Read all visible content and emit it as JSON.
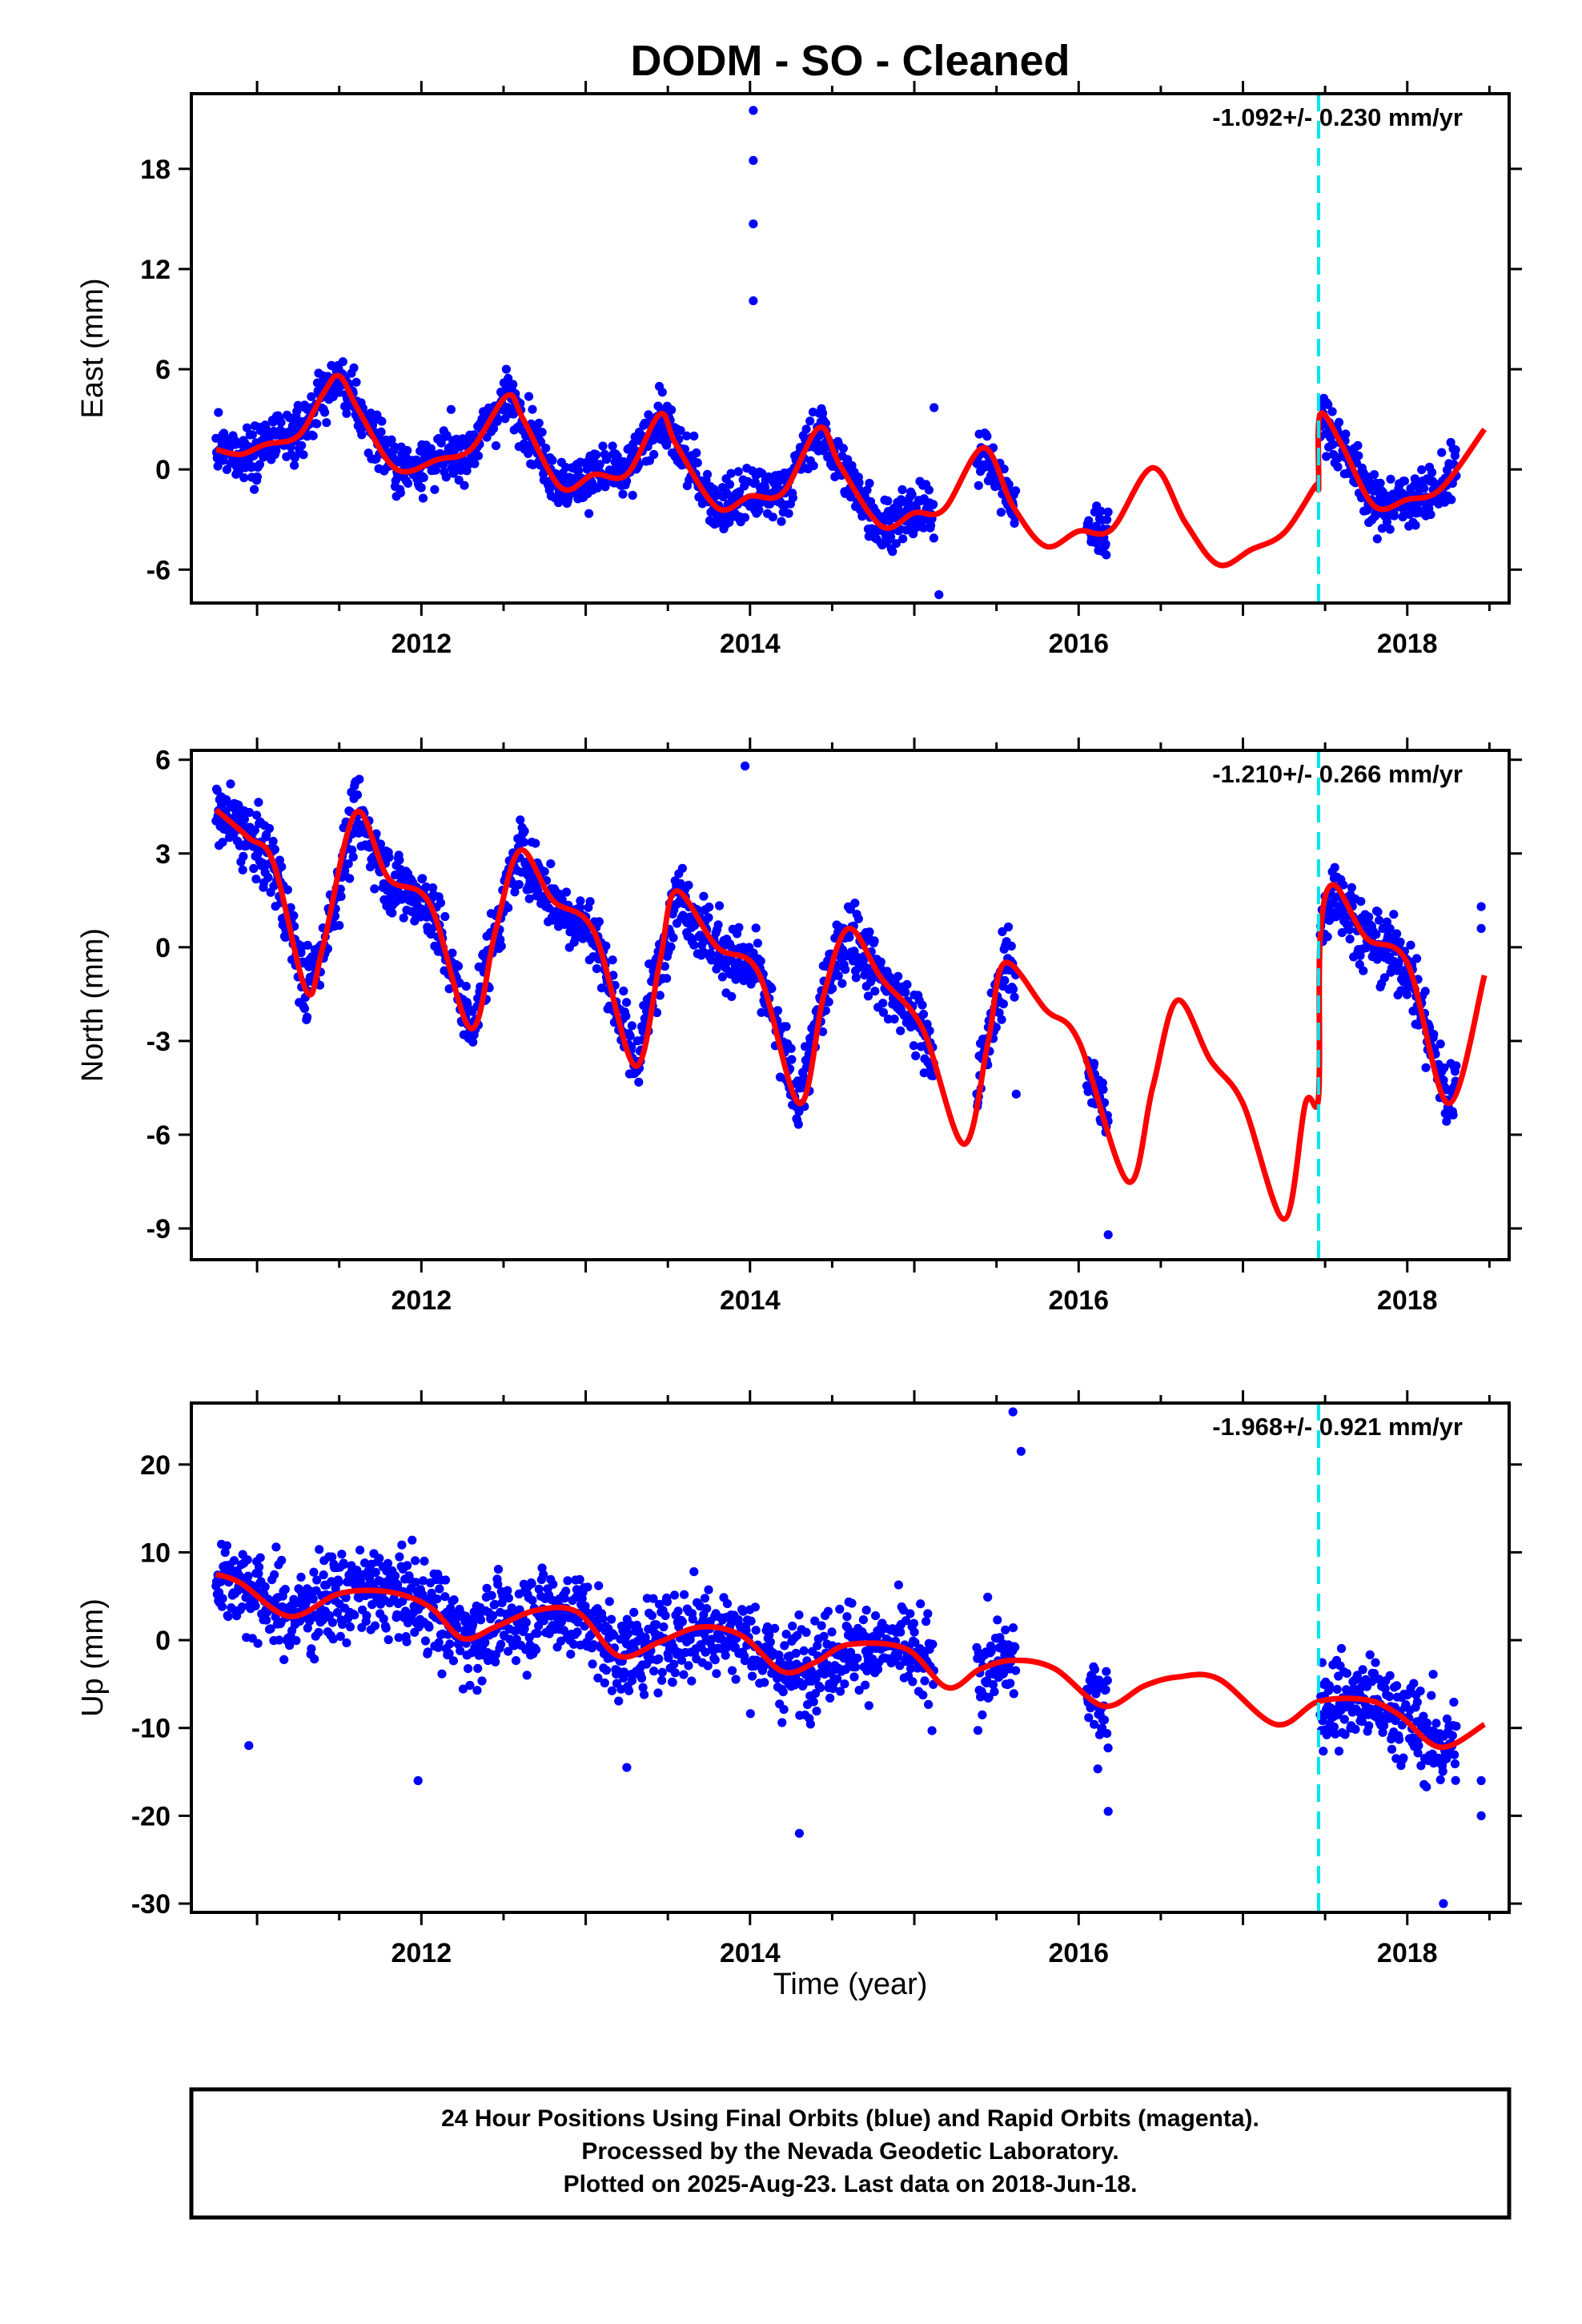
{
  "title": "DODM  - SO - Cleaned",
  "xlabel": "Time (year)",
  "caption": [
    "24 Hour Positions Using Final Orbits (blue) and Rapid Orbits (magenta).",
    "Processed by the Nevada Geodetic Laboratory.",
    "Plotted on 2025-Aug-23. Last data on 2018-Jun-18."
  ],
  "colors": {
    "data": "#0000ff",
    "model": "#ff0000",
    "break_line": "#00e5ee",
    "frame": "#000000"
  },
  "chart_data": [
    {
      "type": "scatter",
      "ylabel": "East (mm)",
      "rate": "-1.092+/- 0.230 mm/yr",
      "xlim": [
        2010.6,
        2018.62
      ],
      "ylim": [
        -8,
        22.5
      ],
      "yticks": [
        18,
        12,
        6,
        0,
        -6
      ],
      "xticks": [
        2012,
        2014,
        2016,
        2018
      ],
      "break_year": 2017.46,
      "outliers": [
        [
          2014.02,
          21.5
        ],
        [
          2014.02,
          18.5
        ],
        [
          2014.02,
          14.7
        ],
        [
          2014.02,
          10.1
        ],
        [
          2015.12,
          3.7
        ],
        [
          2015.15,
          -7.5
        ]
      ],
      "segments": [
        [
          2010.75,
          2015.12
        ],
        [
          2015.38,
          2015.62
        ],
        [
          2016.05,
          2016.18
        ],
        [
          2017.47,
          2018.3
        ]
      ],
      "model": [
        [
          2010.75,
          1.2
        ],
        [
          2010.9,
          0.9
        ],
        [
          2011.05,
          1.5
        ],
        [
          2011.25,
          2.0
        ],
        [
          2011.4,
          4.5
        ],
        [
          2011.5,
          5.6
        ],
        [
          2011.62,
          3.5
        ],
        [
          2011.85,
          0.0
        ],
        [
          2012.1,
          0.6
        ],
        [
          2012.3,
          1.2
        ],
        [
          2012.52,
          4.4
        ],
        [
          2012.62,
          3.0
        ],
        [
          2012.85,
          -1.1
        ],
        [
          2013.05,
          -0.3
        ],
        [
          2013.25,
          -0.3
        ],
        [
          2013.45,
          3.3
        ],
        [
          2013.55,
          1.5
        ],
        [
          2013.8,
          -2.3
        ],
        [
          2014.0,
          -1.6
        ],
        [
          2014.2,
          -1.4
        ],
        [
          2014.42,
          2.5
        ],
        [
          2014.55,
          0.2
        ],
        [
          2014.8,
          -3.4
        ],
        [
          2015.0,
          -2.6
        ],
        [
          2015.18,
          -2.4
        ],
        [
          2015.42,
          1.3
        ],
        [
          2015.6,
          -2.2
        ],
        [
          2015.8,
          -4.6
        ],
        [
          2016.0,
          -3.7
        ],
        [
          2016.2,
          -3.6
        ],
        [
          2016.45,
          0.1
        ],
        [
          2016.65,
          -3.2
        ],
        [
          2016.85,
          -5.7
        ],
        [
          2017.05,
          -4.8
        ],
        [
          2017.25,
          -3.8
        ],
        [
          2017.44,
          -1.0
        ],
        [
          2017.46,
          -1.0
        ],
        [
          2017.47,
          3.3
        ],
        [
          2017.6,
          1.5
        ],
        [
          2017.8,
          -2.2
        ],
        [
          2018.0,
          -1.8
        ],
        [
          2018.2,
          -1.2
        ],
        [
          2018.47,
          2.4
        ]
      ]
    },
    {
      "type": "scatter",
      "ylabel": "North (mm)",
      "rate": "-1.210+/- 0.266 mm/yr",
      "xlim": [
        2010.6,
        2018.62
      ],
      "ylim": [
        -10,
        6.3
      ],
      "yticks": [
        6,
        3,
        0,
        -3,
        -6,
        -9
      ],
      "xticks": [
        2012,
        2014,
        2016,
        2018
      ],
      "break_year": 2017.46,
      "outliers": [
        [
          2013.97,
          5.8
        ],
        [
          2015.62,
          -4.7
        ],
        [
          2016.18,
          -9.2
        ],
        [
          2018.45,
          1.3
        ],
        [
          2018.45,
          0.6
        ]
      ],
      "segments": [
        [
          2010.75,
          2015.12
        ],
        [
          2015.38,
          2015.62
        ],
        [
          2016.05,
          2016.18
        ],
        [
          2017.47,
          2018.3
        ]
      ],
      "model": [
        [
          2010.75,
          4.4
        ],
        [
          2010.95,
          3.5
        ],
        [
          2011.1,
          2.7
        ],
        [
          2011.3,
          -1.4
        ],
        [
          2011.4,
          0.0
        ],
        [
          2011.6,
          4.3
        ],
        [
          2011.8,
          2.2
        ],
        [
          2012.05,
          1.4
        ],
        [
          2012.3,
          -2.6
        ],
        [
          2012.45,
          0.5
        ],
        [
          2012.6,
          3.1
        ],
        [
          2012.8,
          1.5
        ],
        [
          2013.05,
          0.5
        ],
        [
          2013.3,
          -3.8
        ],
        [
          2013.45,
          -0.5
        ],
        [
          2013.55,
          1.8
        ],
        [
          2013.8,
          0.0
        ],
        [
          2014.05,
          -0.8
        ],
        [
          2014.3,
          -5.0
        ],
        [
          2014.45,
          -1.5
        ],
        [
          2014.6,
          0.6
        ],
        [
          2014.8,
          -1.0
        ],
        [
          2015.05,
          -2.6
        ],
        [
          2015.3,
          -6.3
        ],
        [
          2015.45,
          -3.0
        ],
        [
          2015.55,
          -0.5
        ],
        [
          2015.8,
          -2.0
        ],
        [
          2016.0,
          -3.0
        ],
        [
          2016.3,
          -7.5
        ],
        [
          2016.45,
          -4.5
        ],
        [
          2016.6,
          -1.7
        ],
        [
          2016.8,
          -3.6
        ],
        [
          2017.0,
          -5.0
        ],
        [
          2017.25,
          -8.7
        ],
        [
          2017.38,
          -5.0
        ],
        [
          2017.46,
          -4.8
        ],
        [
          2017.47,
          0.3
        ],
        [
          2017.55,
          2.0
        ],
        [
          2017.75,
          0.3
        ],
        [
          2018.0,
          -0.5
        ],
        [
          2018.25,
          -5.0
        ],
        [
          2018.47,
          -0.9
        ]
      ]
    },
    {
      "type": "scatter",
      "ylabel": "Up (mm)",
      "rate": "-1.968+/- 0.921 mm/yr",
      "xlim": [
        2010.6,
        2018.62
      ],
      "ylim": [
        -31,
        27
      ],
      "yticks": [
        20,
        10,
        0,
        -10,
        -20,
        -30
      ],
      "xticks": [
        2012,
        2014,
        2016,
        2018
      ],
      "break_year": 2017.46,
      "outliers": [
        [
          2010.95,
          -12
        ],
        [
          2011.98,
          -16
        ],
        [
          2013.25,
          -14.5
        ],
        [
          2014.3,
          -22
        ],
        [
          2015.6,
          26
        ],
        [
          2015.65,
          21.5
        ],
        [
          2016.18,
          -19.5
        ],
        [
          2018.45,
          -16
        ],
        [
          2018.45,
          -20
        ],
        [
          2018.22,
          -30
        ]
      ],
      "segments": [
        [
          2010.75,
          2015.12
        ],
        [
          2015.38,
          2015.62
        ],
        [
          2016.05,
          2016.18
        ],
        [
          2017.47,
          2018.3
        ]
      ],
      "model": [
        [
          2010.75,
          7.5
        ],
        [
          2010.9,
          6.5
        ],
        [
          2011.2,
          2.7
        ],
        [
          2011.5,
          5.3
        ],
        [
          2011.8,
          5.5
        ],
        [
          2012.05,
          3.8
        ],
        [
          2012.25,
          0.2
        ],
        [
          2012.45,
          1.5
        ],
        [
          2012.7,
          3.4
        ],
        [
          2012.95,
          3.2
        ],
        [
          2013.2,
          -1.8
        ],
        [
          2013.45,
          -0.2
        ],
        [
          2013.7,
          1.5
        ],
        [
          2013.95,
          0.5
        ],
        [
          2014.2,
          -3.6
        ],
        [
          2014.4,
          -2.5
        ],
        [
          2014.6,
          -0.5
        ],
        [
          2014.95,
          -1.0
        ],
        [
          2015.2,
          -5.4
        ],
        [
          2015.4,
          -3.3
        ],
        [
          2015.6,
          -2.3
        ],
        [
          2015.85,
          -3.2
        ],
        [
          2016.15,
          -7.5
        ],
        [
          2016.4,
          -5.2
        ],
        [
          2016.6,
          -4.2
        ],
        [
          2016.85,
          -4.4
        ],
        [
          2017.2,
          -9.6
        ],
        [
          2017.46,
          -7.0
        ],
        [
          2017.75,
          -6.8
        ],
        [
          2017.95,
          -8.5
        ],
        [
          2018.2,
          -12.2
        ],
        [
          2018.47,
          -9.6
        ]
      ]
    }
  ]
}
